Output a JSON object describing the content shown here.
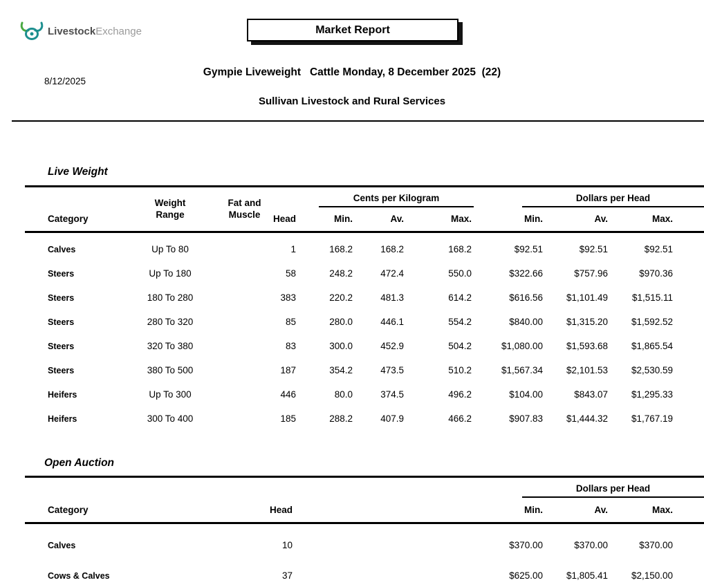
{
  "header": {
    "logo": {
      "brand_bold": "Livestock",
      "brand_light": "Exchange",
      "icon_color": "#1d8f8f",
      "accent_color": "#49a942"
    },
    "report_title": "Market Report",
    "date": "8/12/2025",
    "sale_title": "Gympie Liveweight   Cattle Monday, 8 December 2025  (22)",
    "agent": "Sullivan Livestock and Rural Services"
  },
  "live_weight": {
    "section_title": "Live Weight",
    "headers": {
      "category": "Category",
      "weight_range": "Weight\nRange",
      "fat_muscle": "Fat and\nMuscle",
      "head": "Head",
      "cents_group": "Cents per Kilogram",
      "dollars_group": "Dollars per Head",
      "min": "Min.",
      "av": "Av.",
      "max": "Max."
    },
    "rows": [
      {
        "category": "Calves",
        "weight_range": "Up To 80",
        "fat_muscle": "",
        "head": "1",
        "ckg_min": "168.2",
        "ckg_av": "168.2",
        "ckg_max": "168.2",
        "dph_min": "$92.51",
        "dph_av": "$92.51",
        "dph_max": "$92.51"
      },
      {
        "category": "Steers",
        "weight_range": "Up To 180",
        "fat_muscle": "",
        "head": "58",
        "ckg_min": "248.2",
        "ckg_av": "472.4",
        "ckg_max": "550.0",
        "dph_min": "$322.66",
        "dph_av": "$757.96",
        "dph_max": "$970.36"
      },
      {
        "category": "Steers",
        "weight_range": "180 To 280",
        "fat_muscle": "",
        "head": "383",
        "ckg_min": "220.2",
        "ckg_av": "481.3",
        "ckg_max": "614.2",
        "dph_min": "$616.56",
        "dph_av": "$1,101.49",
        "dph_max": "$1,515.11"
      },
      {
        "category": "Steers",
        "weight_range": "280 To 320",
        "fat_muscle": "",
        "head": "85",
        "ckg_min": "280.0",
        "ckg_av": "446.1",
        "ckg_max": "554.2",
        "dph_min": "$840.00",
        "dph_av": "$1,315.20",
        "dph_max": "$1,592.52"
      },
      {
        "category": "Steers",
        "weight_range": "320 To 380",
        "fat_muscle": "",
        "head": "83",
        "ckg_min": "300.0",
        "ckg_av": "452.9",
        "ckg_max": "504.2",
        "dph_min": "$1,080.00",
        "dph_av": "$1,593.68",
        "dph_max": "$1,865.54"
      },
      {
        "category": "Steers",
        "weight_range": "380 To 500",
        "fat_muscle": "",
        "head": "187",
        "ckg_min": "354.2",
        "ckg_av": "473.5",
        "ckg_max": "510.2",
        "dph_min": "$1,567.34",
        "dph_av": "$2,101.53",
        "dph_max": "$2,530.59"
      },
      {
        "category": "Heifers",
        "weight_range": "Up To 300",
        "fat_muscle": "",
        "head": "446",
        "ckg_min": "80.0",
        "ckg_av": "374.5",
        "ckg_max": "496.2",
        "dph_min": "$104.00",
        "dph_av": "$843.07",
        "dph_max": "$1,295.33"
      },
      {
        "category": "Heifers",
        "weight_range": "300 To 400",
        "fat_muscle": "",
        "head": "185",
        "ckg_min": "288.2",
        "ckg_av": "407.9",
        "ckg_max": "466.2",
        "dph_min": "$907.83",
        "dph_av": "$1,444.32",
        "dph_max": "$1,767.19"
      }
    ]
  },
  "open_auction": {
    "section_title": "Open Auction",
    "headers": {
      "category": "Category",
      "head": "Head",
      "dollars_group": "Dollars per Head",
      "min": "Min.",
      "av": "Av.",
      "max": "Max."
    },
    "rows": [
      {
        "category": "Calves",
        "head": "10",
        "spacer": "",
        "dph_min": "$370.00",
        "dph_av": "$370.00",
        "dph_max": "$370.00"
      },
      {
        "category": "Cows & Calves",
        "head": "37",
        "spacer": "",
        "dph_min": "$625.00",
        "dph_av": "$1,805.41",
        "dph_max": "$2,150.00"
      }
    ]
  }
}
